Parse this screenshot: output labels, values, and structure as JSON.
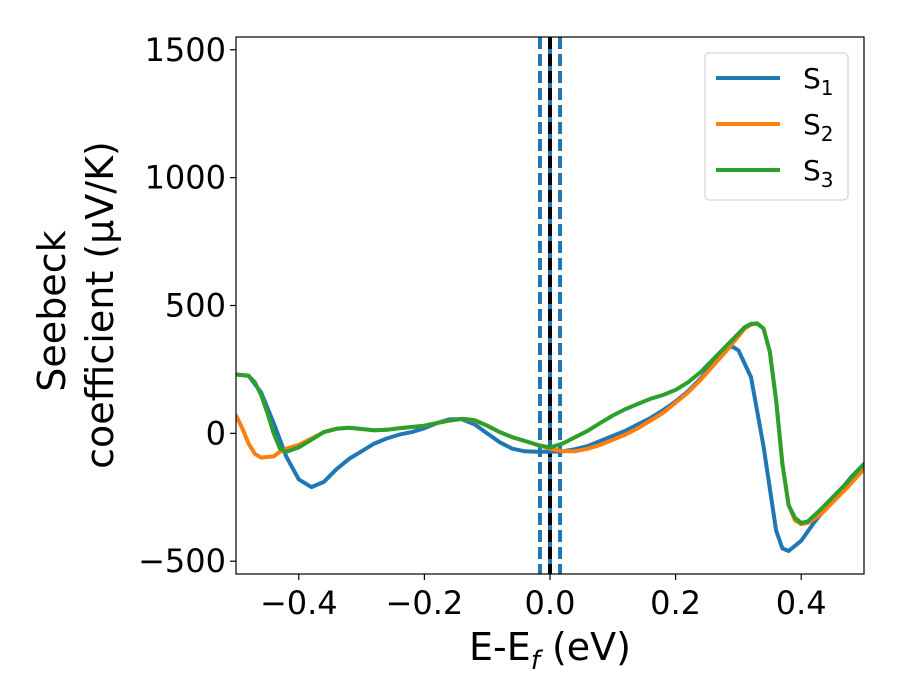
{
  "chart_data": {
    "type": "line",
    "xlabel": "E-E",
    "xlabel_sub": "f",
    "xlabel_unit": " (eV)",
    "ylabel_line1": "Seebeck",
    "ylabel_line2": "coefficient  (μV/K)",
    "xlim": [
      -0.5,
      0.5
    ],
    "ylim": [
      -550,
      1550
    ],
    "xticks": [
      -0.4,
      -0.2,
      0.0,
      0.2,
      0.4
    ],
    "xtick_labels": [
      "−0.4",
      "−0.2",
      "0.0",
      "0.2",
      "0.4"
    ],
    "yticks": [
      -500,
      0,
      500,
      1000,
      1500
    ],
    "ytick_labels": [
      "−500",
      "0",
      "500",
      "1000",
      "1500"
    ],
    "grid": false,
    "legend_position": "top-right",
    "vertical_lines": [
      {
        "x": -0.016,
        "color": "#1f77b4",
        "style": "dashed"
      },
      {
        "x": 0.016,
        "color": "#1f77b4",
        "style": "dashed"
      },
      {
        "x": 0.0,
        "color": "#1f77b4",
        "style": "solid"
      },
      {
        "x": 0.0,
        "color": "#000000",
        "style": "dashed"
      }
    ],
    "series": [
      {
        "name": "S",
        "sub": "1",
        "color": "#1f77b4",
        "points": [
          [
            -0.5,
            230
          ],
          [
            -0.48,
            225
          ],
          [
            -0.46,
            160
          ],
          [
            -0.44,
            40
          ],
          [
            -0.42,
            -90
          ],
          [
            -0.4,
            -180
          ],
          [
            -0.38,
            -210
          ],
          [
            -0.36,
            -190
          ],
          [
            -0.34,
            -140
          ],
          [
            -0.32,
            -100
          ],
          [
            -0.3,
            -70
          ],
          [
            -0.28,
            -40
          ],
          [
            -0.26,
            -20
          ],
          [
            -0.24,
            -5
          ],
          [
            -0.22,
            5
          ],
          [
            -0.2,
            20
          ],
          [
            -0.18,
            40
          ],
          [
            -0.16,
            55
          ],
          [
            -0.14,
            55
          ],
          [
            -0.12,
            35
          ],
          [
            -0.1,
            0
          ],
          [
            -0.08,
            -35
          ],
          [
            -0.06,
            -60
          ],
          [
            -0.04,
            -70
          ],
          [
            -0.02,
            -72
          ],
          [
            0.0,
            -72
          ],
          [
            0.02,
            -70
          ],
          [
            0.04,
            -62
          ],
          [
            0.06,
            -50
          ],
          [
            0.08,
            -30
          ],
          [
            0.1,
            -10
          ],
          [
            0.12,
            10
          ],
          [
            0.14,
            35
          ],
          [
            0.16,
            60
          ],
          [
            0.18,
            90
          ],
          [
            0.2,
            125
          ],
          [
            0.22,
            165
          ],
          [
            0.24,
            215
          ],
          [
            0.26,
            275
          ],
          [
            0.28,
            330
          ],
          [
            0.29,
            340
          ],
          [
            0.3,
            325
          ],
          [
            0.32,
            220
          ],
          [
            0.34,
            -50
          ],
          [
            0.36,
            -380
          ],
          [
            0.37,
            -450
          ],
          [
            0.38,
            -460
          ],
          [
            0.4,
            -420
          ],
          [
            0.42,
            -350
          ],
          [
            0.44,
            -290
          ],
          [
            0.46,
            -230
          ],
          [
            0.48,
            -170
          ],
          [
            0.5,
            -120
          ]
        ]
      },
      {
        "name": "S",
        "sub": "2",
        "color": "#ff7f0e",
        "points": [
          [
            -0.5,
            70
          ],
          [
            -0.49,
            20
          ],
          [
            -0.48,
            -40
          ],
          [
            -0.47,
            -80
          ],
          [
            -0.46,
            -95
          ],
          [
            -0.44,
            -90
          ],
          [
            -0.43,
            -72
          ],
          [
            -0.42,
            -60
          ],
          [
            -0.4,
            -45
          ],
          [
            -0.38,
            -20
          ],
          [
            -0.36,
            5
          ],
          [
            -0.34,
            18
          ],
          [
            -0.32,
            22
          ],
          [
            -0.3,
            17
          ],
          [
            -0.28,
            12
          ],
          [
            -0.26,
            14
          ],
          [
            -0.24,
            20
          ],
          [
            -0.22,
            25
          ],
          [
            -0.2,
            30
          ],
          [
            -0.18,
            40
          ],
          [
            -0.16,
            50
          ],
          [
            -0.14,
            57
          ],
          [
            -0.12,
            50
          ],
          [
            -0.1,
            30
          ],
          [
            -0.08,
            5
          ],
          [
            -0.06,
            -15
          ],
          [
            -0.04,
            -30
          ],
          [
            -0.02,
            -45
          ],
          [
            0.0,
            -60
          ],
          [
            0.02,
            -70
          ],
          [
            0.04,
            -70
          ],
          [
            0.06,
            -60
          ],
          [
            0.08,
            -45
          ],
          [
            0.1,
            -25
          ],
          [
            0.12,
            -5
          ],
          [
            0.14,
            20
          ],
          [
            0.16,
            50
          ],
          [
            0.18,
            80
          ],
          [
            0.2,
            120
          ],
          [
            0.22,
            160
          ],
          [
            0.24,
            210
          ],
          [
            0.26,
            265
          ],
          [
            0.28,
            320
          ],
          [
            0.3,
            380
          ],
          [
            0.31,
            410
          ],
          [
            0.32,
            425
          ],
          [
            0.33,
            430
          ],
          [
            0.34,
            410
          ],
          [
            0.35,
            320
          ],
          [
            0.36,
            130
          ],
          [
            0.37,
            -120
          ],
          [
            0.38,
            -280
          ],
          [
            0.39,
            -340
          ],
          [
            0.4,
            -355
          ],
          [
            0.41,
            -350
          ],
          [
            0.43,
            -320
          ],
          [
            0.45,
            -270
          ],
          [
            0.47,
            -220
          ],
          [
            0.5,
            -140
          ]
        ]
      },
      {
        "name": "S",
        "sub": "3",
        "color": "#2ca02c",
        "points": [
          [
            -0.5,
            230
          ],
          [
            -0.48,
            225
          ],
          [
            -0.47,
            200
          ],
          [
            -0.46,
            150
          ],
          [
            -0.45,
            80
          ],
          [
            -0.44,
            0
          ],
          [
            -0.43,
            -60
          ],
          [
            -0.42,
            -72
          ],
          [
            -0.4,
            -55
          ],
          [
            -0.38,
            -25
          ],
          [
            -0.36,
            5
          ],
          [
            -0.34,
            18
          ],
          [
            -0.32,
            22
          ],
          [
            -0.3,
            17
          ],
          [
            -0.28,
            12
          ],
          [
            -0.26,
            14
          ],
          [
            -0.24,
            20
          ],
          [
            -0.22,
            25
          ],
          [
            -0.2,
            30
          ],
          [
            -0.18,
            40
          ],
          [
            -0.16,
            50
          ],
          [
            -0.14,
            57
          ],
          [
            -0.12,
            52
          ],
          [
            -0.1,
            30
          ],
          [
            -0.08,
            5
          ],
          [
            -0.06,
            -15
          ],
          [
            -0.04,
            -30
          ],
          [
            -0.02,
            -45
          ],
          [
            0.0,
            -55
          ],
          [
            0.02,
            -40
          ],
          [
            0.04,
            -15
          ],
          [
            0.06,
            10
          ],
          [
            0.08,
            40
          ],
          [
            0.1,
            70
          ],
          [
            0.12,
            95
          ],
          [
            0.14,
            115
          ],
          [
            0.16,
            135
          ],
          [
            0.18,
            150
          ],
          [
            0.2,
            170
          ],
          [
            0.22,
            200
          ],
          [
            0.24,
            240
          ],
          [
            0.26,
            290
          ],
          [
            0.28,
            340
          ],
          [
            0.3,
            390
          ],
          [
            0.31,
            415
          ],
          [
            0.32,
            428
          ],
          [
            0.33,
            430
          ],
          [
            0.34,
            410
          ],
          [
            0.35,
            320
          ],
          [
            0.36,
            130
          ],
          [
            0.37,
            -120
          ],
          [
            0.38,
            -280
          ],
          [
            0.39,
            -330
          ],
          [
            0.4,
            -350
          ],
          [
            0.41,
            -345
          ],
          [
            0.43,
            -300
          ],
          [
            0.45,
            -250
          ],
          [
            0.47,
            -200
          ],
          [
            0.5,
            -120
          ]
        ]
      }
    ]
  }
}
